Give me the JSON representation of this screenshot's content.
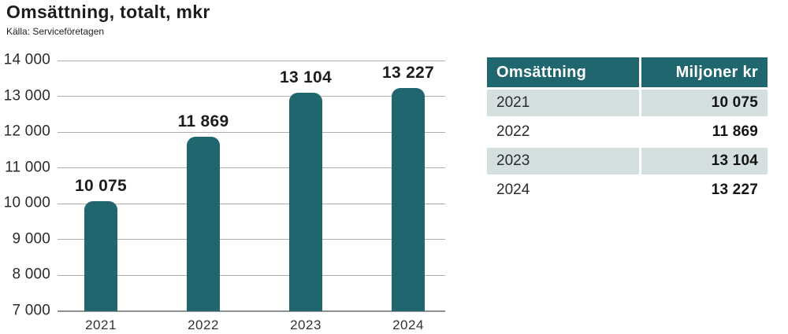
{
  "page": {
    "title": "Omsättning, totalt, mkr",
    "source": "Källa: Serviceföretagen"
  },
  "colors": {
    "bar": "#20666E",
    "table_header_bg": "#20666E",
    "table_row_shaded": "#D4DFDF",
    "gridline": "#ADADAD",
    "axis_line": "#8F8F8F"
  },
  "chart_data": {
    "type": "bar",
    "title": "Omsättning, totalt, mkr",
    "categories": [
      "2021",
      "2022",
      "2023",
      "2024"
    ],
    "values": [
      10075,
      11869,
      13104,
      13227
    ],
    "value_labels": [
      "10 075",
      "11 869",
      "13 104",
      "13 227"
    ],
    "xlabel": "",
    "ylabel": "",
    "ylim": [
      7000,
      14000
    ],
    "ytick_interval": 1000,
    "ytick_labels_top_to_bottom": [
      "14 000",
      "13 000",
      "12 000",
      "11 000",
      "10 000",
      "9 000",
      "8 000",
      "7 000"
    ],
    "grid": true,
    "legend": false,
    "bar_color": "#20666E"
  },
  "table": {
    "headers": [
      "Omsättning",
      "Miljoner kr"
    ],
    "rows": [
      {
        "year": "2021",
        "value": "10 075",
        "shaded": true
      },
      {
        "year": "2022",
        "value": "11 869",
        "shaded": false
      },
      {
        "year": "2023",
        "value": "13 104",
        "shaded": true
      },
      {
        "year": "2024",
        "value": "13 227",
        "shaded": false
      }
    ]
  }
}
